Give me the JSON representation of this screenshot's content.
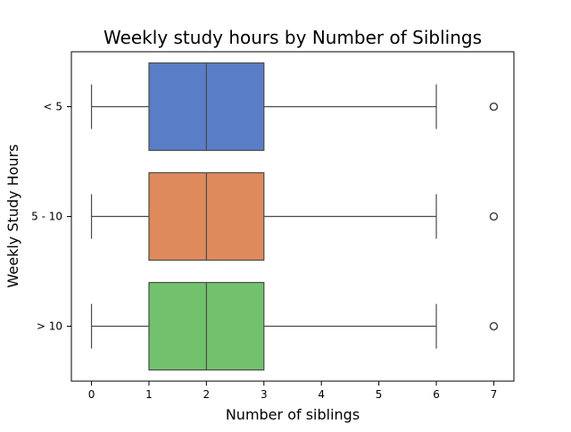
{
  "chart_data": {
    "type": "boxplot",
    "orientation": "horizontal",
    "title": "Weekly study hours by Number of Siblings",
    "xlabel": "Number of siblings",
    "ylabel": "Weekly Study Hours",
    "xlim": [
      -0.35,
      7.35
    ],
    "xticks": [
      0,
      1,
      2,
      3,
      4,
      5,
      6,
      7
    ],
    "grid": false,
    "categories": [
      "< 5",
      "5 - 10",
      "> 10"
    ],
    "series": [
      {
        "category": "< 5",
        "whisker_low": 0,
        "q1": 1,
        "median": 2,
        "q3": 3,
        "whisker_high": 6,
        "outliers": [
          7
        ],
        "color": "#5a7dc7"
      },
      {
        "category": "5 - 10",
        "whisker_low": 0,
        "q1": 1,
        "median": 2,
        "q3": 3,
        "whisker_high": 6,
        "outliers": [
          7
        ],
        "color": "#de8a5c"
      },
      {
        "category": "> 10",
        "whisker_low": 0,
        "q1": 1,
        "median": 2,
        "q3": 3,
        "whisker_high": 6,
        "outliers": [
          7
        ],
        "color": "#72c26d"
      }
    ]
  }
}
